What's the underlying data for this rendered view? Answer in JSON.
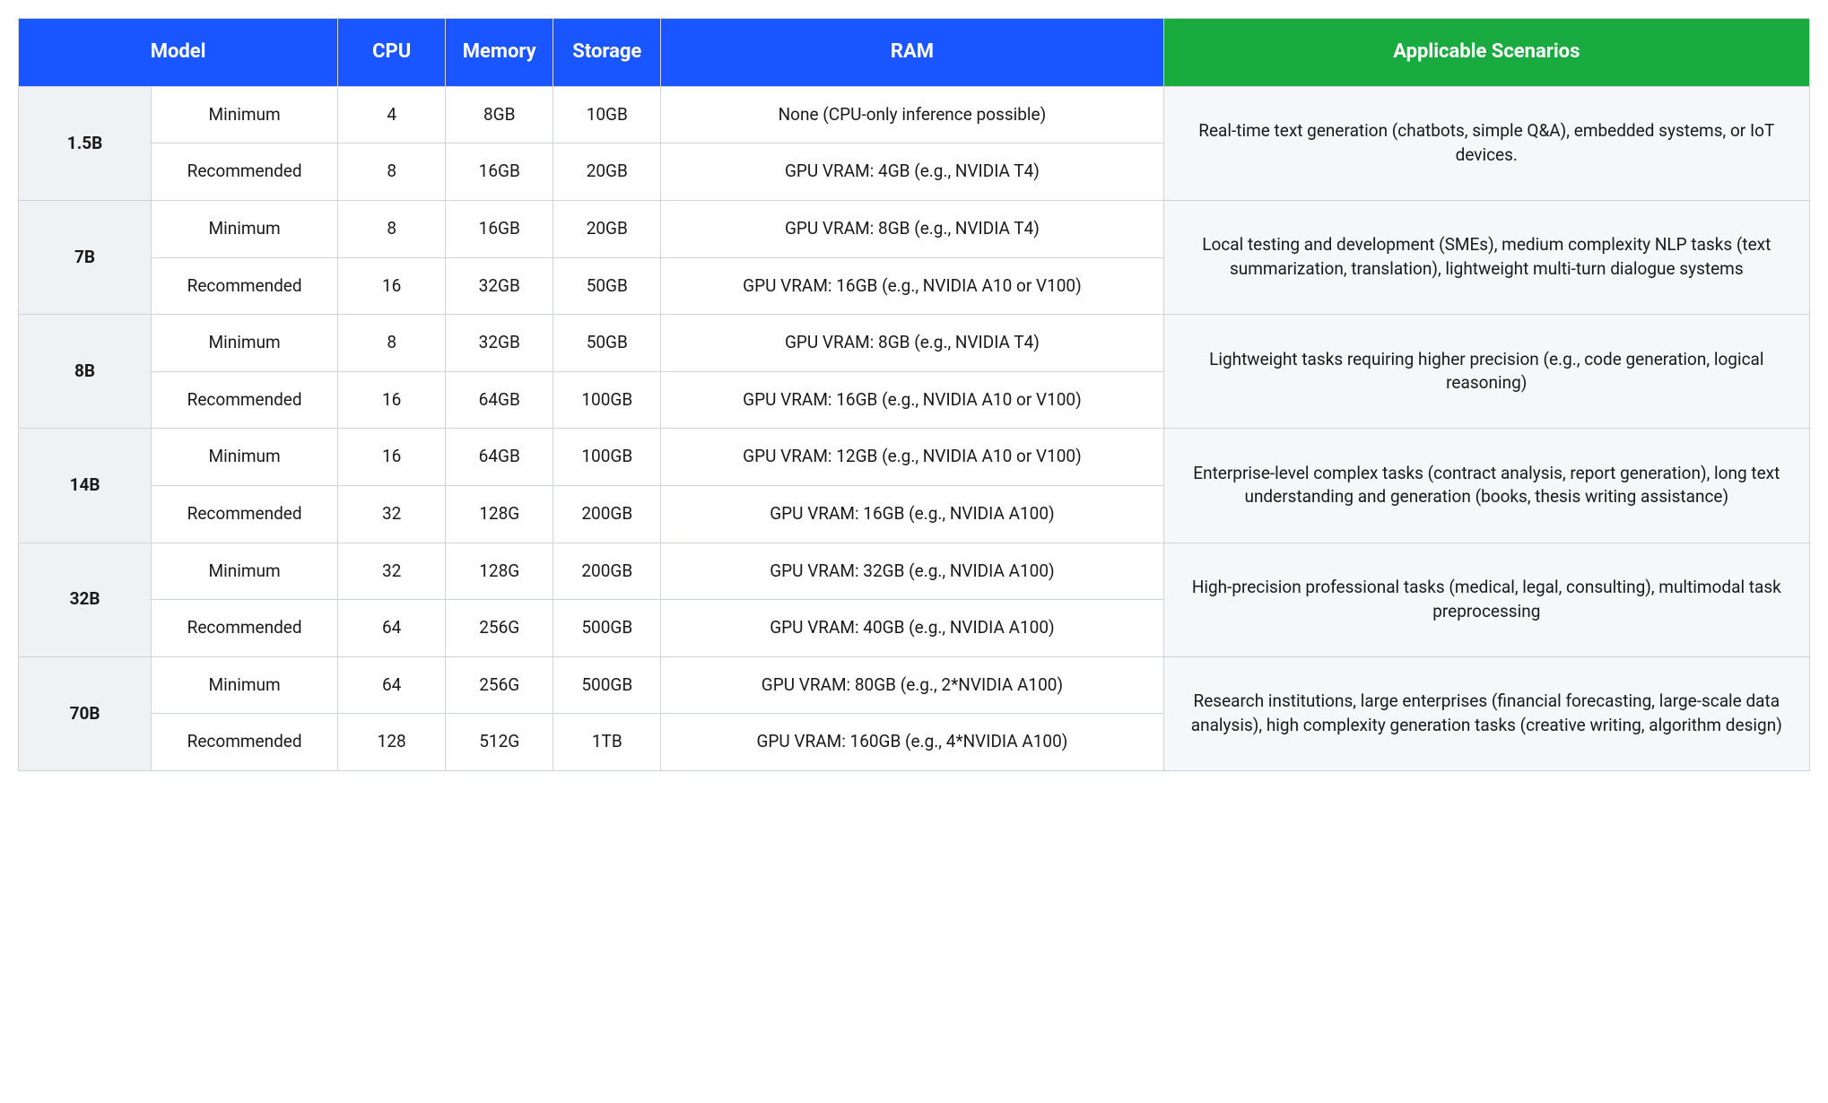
{
  "colors": {
    "header_blue": "#1a56ff",
    "header_green": "#1aab40",
    "border": "#cfd4da",
    "model_bg": "#eef2f5",
    "scenario_bg": "#f5f7f8",
    "text": "#1a1a1a",
    "header_text": "#ffffff"
  },
  "typography": {
    "header_fontsize_pt": 16,
    "body_fontsize_pt": 14,
    "header_fontweight": 700,
    "model_fontweight": 700
  },
  "columns": {
    "model": "Model",
    "cpu": "CPU",
    "memory": "Memory",
    "storage": "Storage",
    "ram": "RAM",
    "scenarios": "Applicable Scenarios"
  },
  "column_widths_pct": {
    "model_name": 7.4,
    "tier": 10.4,
    "cpu": 6,
    "memory": 6,
    "storage": 6,
    "ram": 28,
    "scenarios": 36
  },
  "tiers": {
    "min": "Minimum",
    "rec": "Recommended"
  },
  "rows": [
    {
      "model": "1.5B",
      "min": {
        "cpu": "4",
        "memory": "8GB",
        "storage": "10GB",
        "ram": "None (CPU-only inference possible)"
      },
      "rec": {
        "cpu": "8",
        "memory": "16GB",
        "storage": "20GB",
        "ram": "GPU VRAM: 4GB (e.g., NVIDIA T4)"
      },
      "scenario": "Real-time text generation (chatbots, simple Q&A), embedded systems, or IoT devices."
    },
    {
      "model": "7B",
      "min": {
        "cpu": "8",
        "memory": "16GB",
        "storage": "20GB",
        "ram": "GPU VRAM: 8GB (e.g., NVIDIA T4)"
      },
      "rec": {
        "cpu": "16",
        "memory": "32GB",
        "storage": "50GB",
        "ram": "GPU VRAM: 16GB (e.g., NVIDIA A10 or V100)"
      },
      "scenario": "Local testing and development (SMEs), medium complexity NLP tasks (text summarization, translation), lightweight multi-turn dialogue systems"
    },
    {
      "model": "8B",
      "min": {
        "cpu": "8",
        "memory": "32GB",
        "storage": "50GB",
        "ram": "GPU VRAM: 8GB (e.g., NVIDIA T4)"
      },
      "rec": {
        "cpu": "16",
        "memory": "64GB",
        "storage": "100GB",
        "ram": "GPU VRAM: 16GB (e.g., NVIDIA A10 or V100)"
      },
      "scenario": "Lightweight tasks requiring higher precision (e.g., code generation, logical reasoning)"
    },
    {
      "model": "14B",
      "min": {
        "cpu": "16",
        "memory": "64GB",
        "storage": "100GB",
        "ram": "GPU VRAM: 12GB (e.g., NVIDIA A10 or V100)"
      },
      "rec": {
        "cpu": "32",
        "memory": "128G",
        "storage": "200GB",
        "ram": "GPU VRAM: 16GB (e.g., NVIDIA A100)"
      },
      "scenario": "Enterprise-level complex tasks (contract analysis, report generation), long text understanding and generation (books, thesis writing assistance)"
    },
    {
      "model": "32B",
      "min": {
        "cpu": "32",
        "memory": "128G",
        "storage": "200GB",
        "ram": "GPU VRAM: 32GB (e.g., NVIDIA A100)"
      },
      "rec": {
        "cpu": "64",
        "memory": "256G",
        "storage": "500GB",
        "ram": "GPU VRAM: 40GB (e.g., NVIDIA A100)"
      },
      "scenario": "High-precision professional tasks (medical, legal, consulting), multimodal task preprocessing"
    },
    {
      "model": "70B",
      "min": {
        "cpu": "64",
        "memory": "256G",
        "storage": "500GB",
        "ram": "GPU VRAM: 80GB (e.g., 2*NVIDIA A100)"
      },
      "rec": {
        "cpu": "128",
        "memory": "512G",
        "storage": "1TB",
        "ram": "GPU VRAM: 160GB (e.g., 4*NVIDIA A100)"
      },
      "scenario": "Research institutions, large enterprises (financial forecasting, large-scale data analysis), high complexity generation tasks (creative writing, algorithm design)"
    }
  ]
}
